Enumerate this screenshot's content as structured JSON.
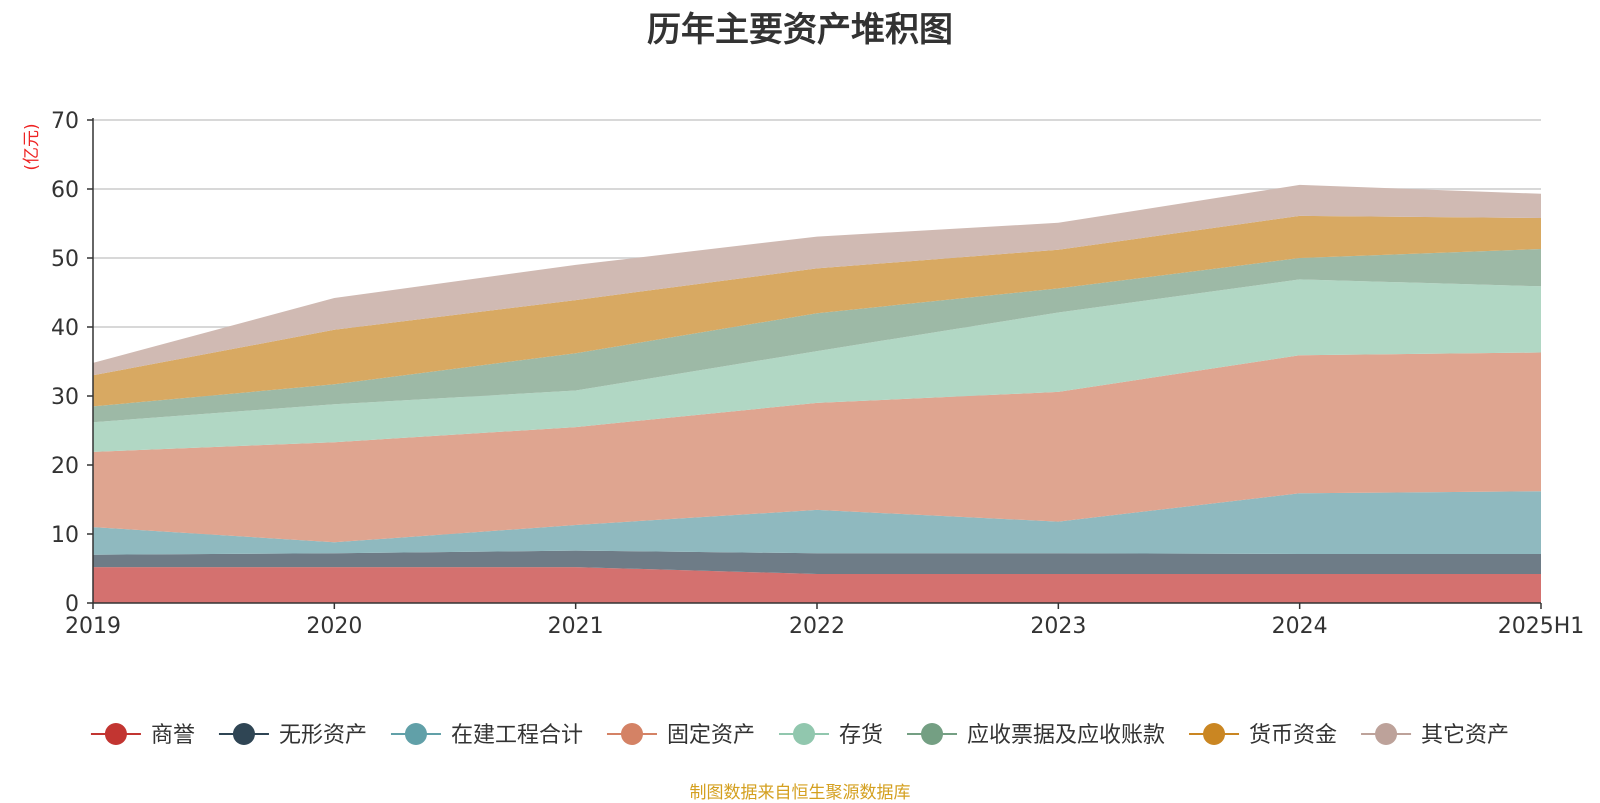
{
  "chart_data": {
    "type": "area",
    "stacked": true,
    "title": "历年主要资产堆积图",
    "ylabel": "(亿元)",
    "xlabel": "",
    "categories": [
      "2019",
      "2020",
      "2021",
      "2022",
      "2023",
      "2024",
      "2025H1"
    ],
    "ylim": [
      0,
      70
    ],
    "yticks": [
      0,
      10,
      20,
      30,
      40,
      50,
      60,
      70
    ],
    "grid": true,
    "legend_position": "bottom",
    "series": [
      {
        "name": "商誉",
        "values": [
          5.2,
          5.2,
          5.2,
          4.2,
          4.2,
          4.2,
          4.2
        ],
        "color": "#c23531",
        "fill": "#d4716f"
      },
      {
        "name": "无形资产",
        "values": [
          1.8,
          2.0,
          2.4,
          3.0,
          3.0,
          2.9,
          2.9
        ],
        "color": "#2f4554",
        "fill": "#6e7c87"
      },
      {
        "name": "在建工程合计",
        "values": [
          4.0,
          1.6,
          3.7,
          6.3,
          4.6,
          8.8,
          9.1
        ],
        "color": "#61a0a8",
        "fill": "#8fb9bf"
      },
      {
        "name": "固定资产",
        "values": [
          10.9,
          14.5,
          14.2,
          15.5,
          18.8,
          20.0,
          20.1
        ],
        "color": "#d48265",
        "fill": "#dfa590"
      },
      {
        "name": "存货",
        "values": [
          4.3,
          5.5,
          5.3,
          7.5,
          11.5,
          11.0,
          9.6
        ],
        "color": "#91c7ae",
        "fill": "#b1d7c4"
      },
      {
        "name": "应收票据及应收账款",
        "values": [
          2.3,
          2.9,
          5.4,
          5.5,
          3.5,
          3.1,
          5.4
        ],
        "color": "#749f83",
        "fill": "#9db9a6"
      },
      {
        "name": "货币资金",
        "values": [
          4.5,
          7.9,
          7.7,
          6.5,
          5.6,
          6.1,
          4.5
        ],
        "color": "#ca8622",
        "fill": "#d8a962"
      },
      {
        "name": "其它资产",
        "values": [
          1.8,
          4.6,
          5.1,
          4.6,
          3.9,
          4.5,
          3.5
        ],
        "color": "#bda29a",
        "fill": "#d0bab3"
      }
    ],
    "source_note": "制图数据来自恒生聚源数据库"
  }
}
